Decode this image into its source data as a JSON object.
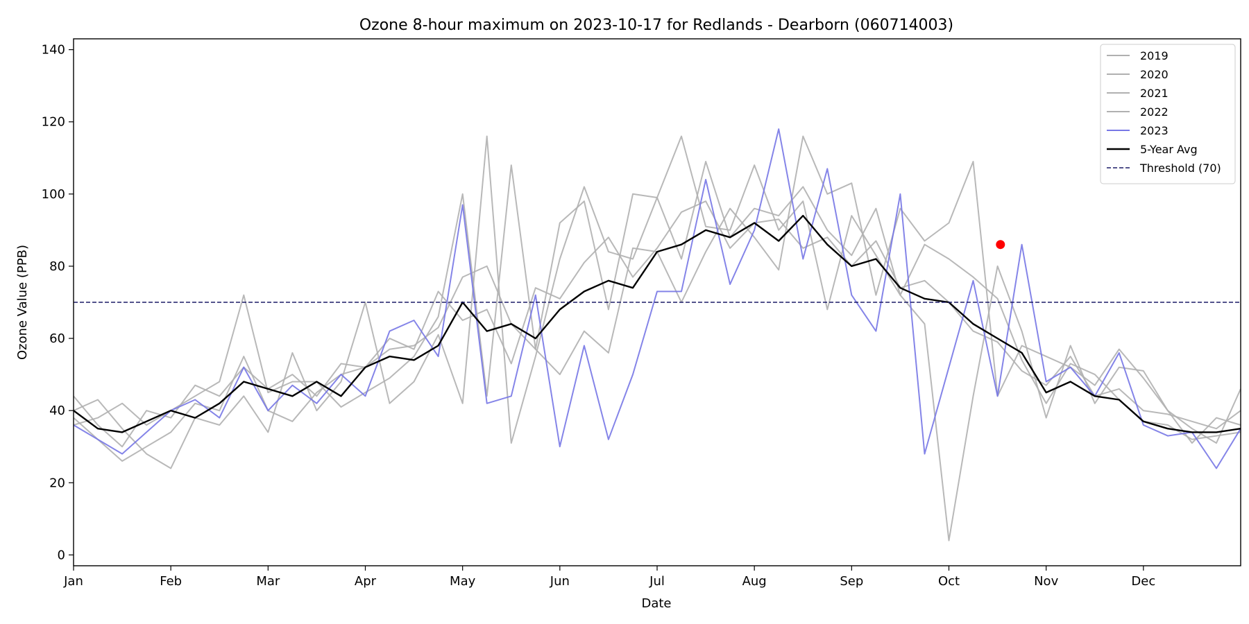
{
  "chart_data": {
    "type": "line",
    "title": "Ozone 8-hour maximum on 2023-10-17 for Redlands - Dearborn (060714003)",
    "xlabel": "Date",
    "ylabel": "Ozone Value (PPB)",
    "x_unit": "month",
    "xlim": [
      0,
      12
    ],
    "ylim": [
      -3,
      143
    ],
    "month_ticks": [
      {
        "label": "Jan",
        "value": 0
      },
      {
        "label": "Feb",
        "value": 1
      },
      {
        "label": "Mar",
        "value": 2
      },
      {
        "label": "Apr",
        "value": 3
      },
      {
        "label": "May",
        "value": 4
      },
      {
        "label": "Jun",
        "value": 5
      },
      {
        "label": "Jul",
        "value": 6
      },
      {
        "label": "Aug",
        "value": 7
      },
      {
        "label": "Sep",
        "value": 8
      },
      {
        "label": "Oct",
        "value": 9
      },
      {
        "label": "Nov",
        "value": 10
      },
      {
        "label": "Dec",
        "value": 11
      }
    ],
    "y_ticks": [
      0,
      20,
      40,
      60,
      80,
      100,
      120,
      140
    ],
    "grid": false,
    "legend_position": "top-right",
    "threshold": {
      "name": "Threshold (70)",
      "value": 70,
      "color": "#1a1a66"
    },
    "highlight": {
      "month": 9.53,
      "value": 86,
      "color": "#ff0000"
    },
    "series": [
      {
        "name": "2019",
        "color": "#b0b0b0",
        "style": "solid",
        "x": [
          0.0,
          0.25,
          0.5,
          0.75,
          1.0,
          1.25,
          1.5,
          1.75,
          2.0,
          2.25,
          2.5,
          2.75,
          3.0,
          3.25,
          3.5,
          3.75,
          4.0,
          4.25,
          4.5,
          4.75,
          5.0,
          5.25,
          5.5,
          5.75,
          6.0,
          6.25,
          6.5,
          6.75,
          7.0,
          7.25,
          7.5,
          7.75,
          8.0,
          8.25,
          8.5,
          8.75,
          9.0,
          9.25,
          9.5,
          9.75,
          10.0,
          10.25,
          10.5,
          10.75,
          11.0,
          11.25,
          11.5,
          11.75,
          12.0
        ],
        "values": [
          44,
          36,
          30,
          40,
          38,
          47,
          44,
          52,
          46,
          50,
          44,
          53,
          52,
          60,
          57,
          73,
          65,
          68,
          53,
          74,
          71,
          81,
          88,
          77,
          85,
          95,
          98,
          85,
          92,
          93,
          85,
          88,
          80,
          87,
          74,
          76,
          70,
          62,
          59,
          51,
          47,
          55,
          44,
          46,
          40,
          39,
          37,
          35,
          40
        ]
      },
      {
        "name": "2020",
        "color": "#b0b0b0",
        "style": "solid",
        "x": [
          0.0,
          0.25,
          0.5,
          0.75,
          1.0,
          1.25,
          1.5,
          1.75,
          2.0,
          2.25,
          2.5,
          2.75,
          3.0,
          3.25,
          3.5,
          3.75,
          4.0,
          4.25,
          4.5,
          4.75,
          5.0,
          5.25,
          5.5,
          5.75,
          6.0,
          6.25,
          6.5,
          6.75,
          7.0,
          7.25,
          7.5,
          7.75,
          8.0,
          8.25,
          8.5,
          8.75,
          9.0,
          9.25,
          9.5,
          9.75,
          10.0,
          10.25,
          10.5,
          10.75,
          11.0,
          11.25,
          11.5,
          11.75,
          12.0
        ],
        "values": [
          38,
          32,
          26,
          30,
          34,
          42,
          40,
          55,
          40,
          37,
          45,
          50,
          52,
          57,
          58,
          63,
          77,
          80,
          64,
          57,
          92,
          98,
          68,
          100,
          99,
          82,
          109,
          88,
          96,
          94,
          102,
          90,
          83,
          96,
          72,
          86,
          82,
          77,
          71,
          54,
          42,
          53,
          50,
          43,
          37,
          36,
          32,
          33,
          34
        ]
      },
      {
        "name": "2021",
        "color": "#b0b0b0",
        "style": "solid",
        "x": [
          0.0,
          0.25,
          0.5,
          0.75,
          1.0,
          1.25,
          1.5,
          1.75,
          2.0,
          2.25,
          2.5,
          2.75,
          3.0,
          3.25,
          3.5,
          3.75,
          4.0,
          4.25,
          4.5,
          4.75,
          5.0,
          5.25,
          5.5,
          5.75,
          6.0,
          6.25,
          6.5,
          6.75,
          7.0,
          7.25,
          7.5,
          7.75,
          8.0,
          8.25,
          8.5,
          8.75,
          9.0,
          9.25,
          9.5,
          9.75,
          10.0,
          10.25,
          10.5,
          10.75,
          11.0,
          11.25,
          11.5,
          11.75,
          12.0
        ],
        "values": [
          36,
          38,
          42,
          36,
          40,
          44,
          48,
          72,
          45,
          48,
          48,
          41,
          45,
          49,
          55,
          66,
          100,
          44,
          108,
          57,
          50,
          62,
          56,
          85,
          84,
          70,
          84,
          96,
          88,
          79,
          116,
          100,
          103,
          72,
          96,
          87,
          92,
          109,
          44,
          58,
          55,
          52,
          47,
          57,
          49,
          40,
          35,
          31,
          46
        ]
      },
      {
        "name": "2022",
        "color": "#b0b0b0",
        "style": "solid",
        "x": [
          0.0,
          0.25,
          0.5,
          0.75,
          1.0,
          1.25,
          1.5,
          1.75,
          2.0,
          2.25,
          2.5,
          2.75,
          3.0,
          3.25,
          3.5,
          3.75,
          4.0,
          4.25,
          4.5,
          4.75,
          5.0,
          5.25,
          5.5,
          5.75,
          6.0,
          6.25,
          6.5,
          6.75,
          7.0,
          7.25,
          7.5,
          7.75,
          8.0,
          8.25,
          8.5,
          8.75,
          9.0,
          9.25,
          9.5,
          9.75,
          10.0,
          10.25,
          10.5,
          10.75,
          11.0,
          11.25,
          11.5,
          11.75,
          12.0
        ],
        "values": [
          40,
          43,
          35,
          28,
          24,
          38,
          36,
          44,
          34,
          56,
          40,
          48,
          70,
          42,
          48,
          61,
          42,
          116,
          31,
          55,
          82,
          102,
          84,
          82,
          99,
          116,
          91,
          90,
          108,
          90,
          98,
          68,
          94,
          83,
          72,
          64,
          4,
          44,
          80,
          62,
          38,
          58,
          42,
          52,
          51,
          40,
          31,
          38,
          36
        ]
      },
      {
        "name": "2023",
        "color": "#7777e6",
        "style": "solid",
        "x": [
          0.0,
          0.25,
          0.5,
          0.75,
          1.0,
          1.25,
          1.5,
          1.75,
          2.0,
          2.25,
          2.5,
          2.75,
          3.0,
          3.25,
          3.5,
          3.75,
          4.0,
          4.25,
          4.5,
          4.75,
          5.0,
          5.25,
          5.5,
          5.75,
          6.0,
          6.25,
          6.5,
          6.75,
          7.0,
          7.25,
          7.5,
          7.75,
          8.0,
          8.25,
          8.5,
          8.75,
          9.0,
          9.25,
          9.5,
          9.75,
          10.0,
          10.25,
          10.5,
          10.75,
          11.0,
          11.25,
          11.5,
          11.75,
          12.0
        ],
        "values": [
          36,
          32,
          28,
          34,
          40,
          43,
          38,
          52,
          40,
          47,
          42,
          50,
          44,
          62,
          65,
          55,
          97,
          42,
          44,
          72,
          30,
          58,
          32,
          50,
          73,
          73,
          104,
          75,
          90,
          118,
          82,
          107,
          72,
          62,
          100,
          28,
          52,
          76,
          44,
          86,
          48,
          52,
          44,
          56,
          36,
          33,
          34,
          24,
          35
        ]
      },
      {
        "name": "5-Year Avg",
        "color": "#000000",
        "style": "solid",
        "x": [
          0.0,
          0.25,
          0.5,
          0.75,
          1.0,
          1.25,
          1.5,
          1.75,
          2.0,
          2.25,
          2.5,
          2.75,
          3.0,
          3.25,
          3.5,
          3.75,
          4.0,
          4.25,
          4.5,
          4.75,
          5.0,
          5.25,
          5.5,
          5.75,
          6.0,
          6.25,
          6.5,
          6.75,
          7.0,
          7.25,
          7.5,
          7.75,
          8.0,
          8.25,
          8.5,
          8.75,
          9.0,
          9.25,
          9.5,
          9.75,
          10.0,
          10.25,
          10.5,
          10.75,
          11.0,
          11.25,
          11.5,
          11.75,
          12.0
        ],
        "values": [
          40,
          35,
          34,
          37,
          40,
          38,
          42,
          48,
          46,
          44,
          48,
          44,
          52,
          55,
          54,
          58,
          70,
          62,
          64,
          60,
          68,
          73,
          76,
          74,
          84,
          86,
          90,
          88,
          92,
          87,
          94,
          86,
          80,
          82,
          74,
          71,
          70,
          64,
          60,
          56,
          45,
          48,
          44,
          43,
          37,
          35,
          34,
          34,
          35
        ]
      }
    ]
  }
}
